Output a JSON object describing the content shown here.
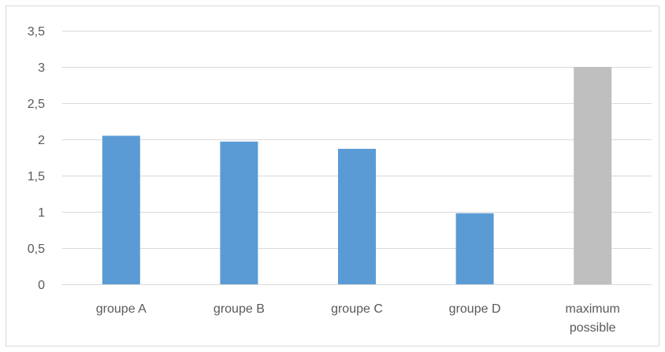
{
  "chart_data": {
    "type": "bar",
    "categories": [
      "groupe A",
      "groupe B",
      "groupe C",
      "groupe D",
      "maximum possible"
    ],
    "category_lines": [
      [
        "groupe A"
      ],
      [
        "groupe B"
      ],
      [
        "groupe C"
      ],
      [
        "groupe D"
      ],
      [
        "maximum",
        "possible"
      ]
    ],
    "values": [
      2.05,
      1.97,
      1.87,
      0.98,
      3.0
    ],
    "bar_colors": [
      "#5b9bd5",
      "#5b9bd5",
      "#5b9bd5",
      "#5b9bd5",
      "#bfbfbf"
    ],
    "y_ticks": [
      "0",
      "0,5",
      "1",
      "1,5",
      "2",
      "2,5",
      "3",
      "3,5"
    ],
    "y_tick_values": [
      0,
      0.5,
      1,
      1.5,
      2,
      2.5,
      3,
      3.5
    ],
    "ylim": [
      0,
      3.5
    ],
    "grid": true,
    "legend": "none",
    "title": "",
    "xlabel": "",
    "ylabel": "",
    "colors": {
      "primary_bar": "#5b9bd5",
      "reference_bar": "#bfbfbf",
      "grid": "#d9d9d9",
      "text": "#595959",
      "border": "#d9d9d9"
    }
  }
}
